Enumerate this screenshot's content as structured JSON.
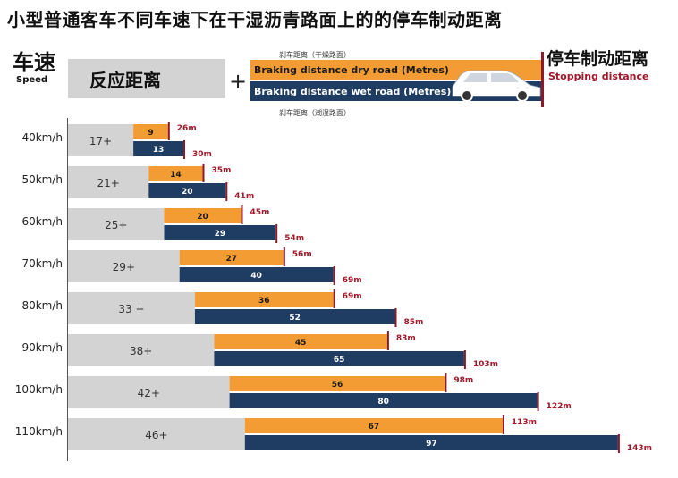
{
  "title": "小型普通客车不同车速下在干湿沥青路面上的的停车制动距离",
  "legend": {
    "speed_cn": "车速",
    "speed_en": "Speed",
    "reaction": "反应距离",
    "plus": "+",
    "dry_cn": "刹车距离（干燥路面）",
    "dry_en": "Braking distance dry road (Metres)",
    "wet_en": "Braking distance wet road (Metres)",
    "wet_cn": "刹车距离（潮湿路面）",
    "stop_cn": "停车制动距离",
    "stop_en": "Stopping distance"
  },
  "colors": {
    "reaction": "#d3d3d3",
    "dry": "#f39c33",
    "wet": "#1f3d63",
    "stop_marker": "#8b1a2b",
    "stop_text": "#a0182a"
  },
  "chart_data": {
    "type": "bar",
    "orientation": "horizontal-stacked",
    "categories": [
      "40km/h",
      "50km/h",
      "60km/h",
      "70km/h",
      "80km/h",
      "90km/h",
      "100km/h",
      "110km/h"
    ],
    "reaction_labels": [
      "17+",
      "21+",
      "25+",
      "29+",
      "33 +",
      "38+",
      "42+",
      "46+"
    ],
    "series": [
      {
        "name": "反应距离",
        "values": [
          17,
          21,
          25,
          29,
          33,
          38,
          42,
          46
        ]
      },
      {
        "name": "Braking distance dry road (Metres)",
        "values": [
          9,
          14,
          20,
          27,
          36,
          45,
          56,
          67
        ]
      },
      {
        "name": "Braking distance wet road (Metres)",
        "values": [
          13,
          20,
          29,
          40,
          52,
          65,
          80,
          97
        ]
      }
    ],
    "stopping_dry_labels": [
      "26m",
      "35m",
      "45m",
      "56m",
      "69m",
      "83m",
      "98m",
      "113m"
    ],
    "stopping_wet_labels": [
      "30m",
      "41m",
      "54m",
      "69m",
      "85m",
      "103m",
      "122m",
      "143m"
    ],
    "unit": "m"
  }
}
